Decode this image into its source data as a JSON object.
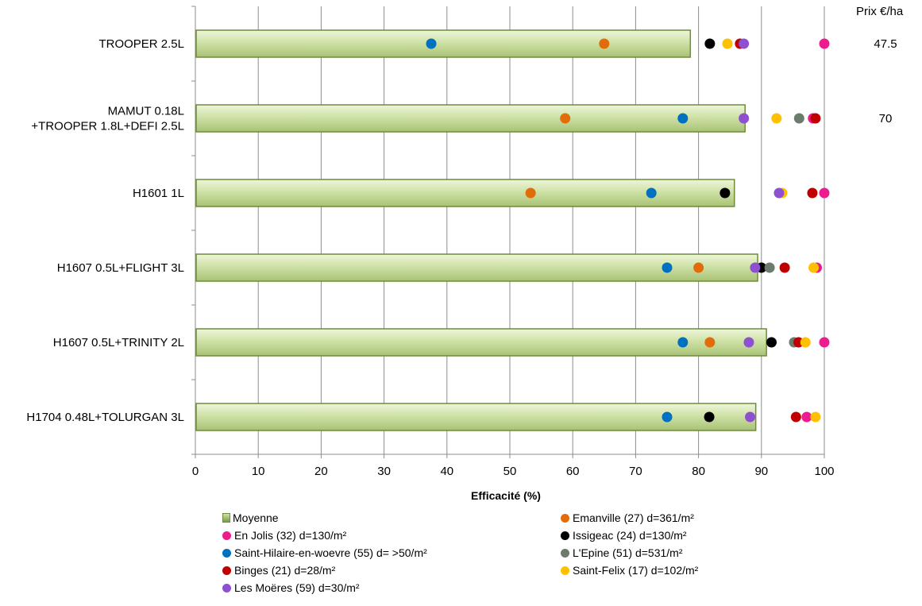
{
  "chart_data": {
    "type": "bar",
    "orientation": "horizontal",
    "xlabel": "Efficacité (%)",
    "xlim": [
      0,
      100
    ],
    "xticks": [
      0,
      10,
      20,
      30,
      40,
      50,
      60,
      70,
      80,
      90,
      100
    ],
    "price_header": "Prix €/ha",
    "categories": [
      "TROOPER 2.5L",
      "MAMUT 0.18L\n+TROOPER 1.8L+DEFI 2.5L",
      "H1601 1L",
      "H1607 0.5L+FLIGHT 3L",
      "H1607 0.5L+TRINITY 2L",
      "H1704 0.48L+TOLURGAN 3L"
    ],
    "prices": [
      "47.5",
      "70",
      "",
      "",
      "",
      ""
    ],
    "bar_series": {
      "name": "Moyenne",
      "values": [
        78.7,
        87.4,
        85.7,
        89.4,
        90.8,
        89.1
      ]
    },
    "series": [
      {
        "name": "Emanville (27) d=361/m²",
        "color": "#e36c0a",
        "values": [
          65,
          58.8,
          53.3,
          80,
          81.8,
          null
        ]
      },
      {
        "name": "En Jolis (32) d=130/m²",
        "color": "#ec1b8e",
        "values": [
          100,
          98.2,
          100,
          98.8,
          100,
          97.2
        ]
      },
      {
        "name": "Issigeac (24) d=130/m²",
        "color": "#000000",
        "values": [
          81.8,
          null,
          84.2,
          90,
          91.6,
          81.7
        ]
      },
      {
        "name": "Saint-Hilaire-en-woevre (55) d= >50/m²",
        "color": "#0070c0",
        "values": [
          37.5,
          77.5,
          72.5,
          75,
          77.5,
          75
        ]
      },
      {
        "name": "L'Epine (51) d=531/m²",
        "color": "#6d7b6d",
        "values": [
          null,
          96,
          null,
          91.3,
          95.2,
          null
        ]
      },
      {
        "name": "Binges (21) d=28/m²",
        "color": "#c00000",
        "values": [
          86.6,
          98.6,
          98.1,
          93.7,
          95.9,
          95.5
        ]
      },
      {
        "name": "Saint-Felix (17) d=102/m²",
        "color": "#ffc000",
        "values": [
          84.6,
          92.4,
          93.3,
          98.3,
          97,
          98.6
        ]
      },
      {
        "name": "Les Moëres (59) d=30/m²",
        "color": "#8e50d0",
        "values": [
          87.2,
          87.2,
          92.8,
          89,
          88,
          88.2
        ]
      }
    ],
    "grid": true
  },
  "legend": {
    "items": [
      "Moyenne",
      "Emanville (27) d=361/m²",
      "En Jolis (32) d=130/m²",
      "Issigeac (24) d=130/m²",
      "Saint-Hilaire-en-woevre (55) d= >50/m²",
      "L'Epine (51) d=531/m²",
      "Binges (21) d=28/m²",
      "Saint-Felix (17) d=102/m²",
      "Les Moëres (59) d=30/m²"
    ]
  }
}
